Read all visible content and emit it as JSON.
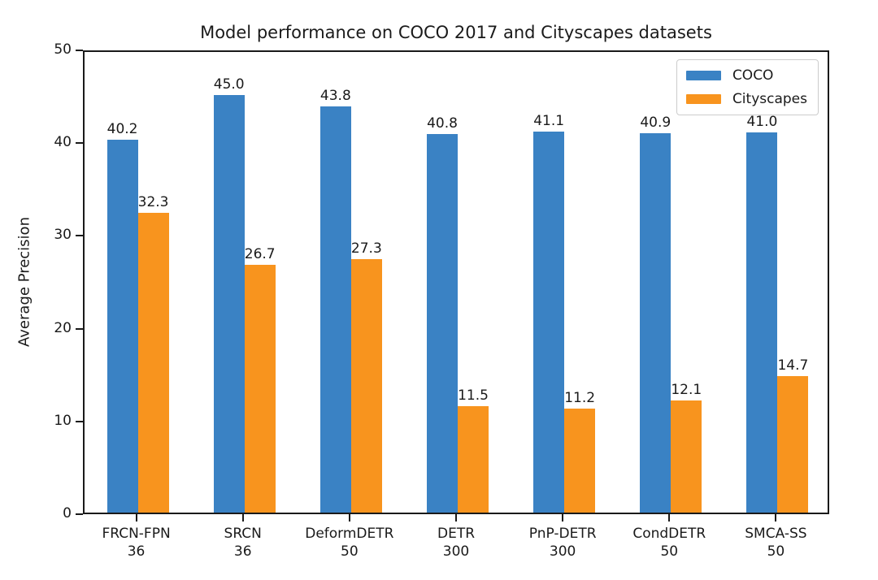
{
  "chart_data": {
    "type": "bar",
    "title": "Model performance on COCO 2017 and Cityscapes datasets",
    "xlabel": "",
    "ylabel": "Average Precision",
    "ylim": [
      0,
      50
    ],
    "yticks": [
      0,
      10,
      20,
      30,
      40,
      50
    ],
    "grid": false,
    "legend_position": "upper right",
    "categories": [
      {
        "model": "FRCN-FPN",
        "epochs": "36"
      },
      {
        "model": "SRCN",
        "epochs": "36"
      },
      {
        "model": "DeformDETR",
        "epochs": "50"
      },
      {
        "model": "DETR",
        "epochs": "300"
      },
      {
        "model": "PnP-DETR",
        "epochs": "300"
      },
      {
        "model": "CondDETR",
        "epochs": "50"
      },
      {
        "model": "SMCA-SS",
        "epochs": "50"
      }
    ],
    "series": [
      {
        "name": "COCO",
        "color": "#3a82c4",
        "values": [
          40.2,
          45.0,
          43.8,
          40.8,
          41.1,
          40.9,
          41.0
        ]
      },
      {
        "name": "Cityscapes",
        "color": "#f8941e",
        "values": [
          32.3,
          26.7,
          27.3,
          11.5,
          11.2,
          12.1,
          14.7
        ]
      }
    ],
    "value_label_decimals": 1
  },
  "colors": {
    "spine": "#1a1a1a",
    "text": "#1a1a1a",
    "background": "#ffffff",
    "legend_border": "#cccccc"
  }
}
